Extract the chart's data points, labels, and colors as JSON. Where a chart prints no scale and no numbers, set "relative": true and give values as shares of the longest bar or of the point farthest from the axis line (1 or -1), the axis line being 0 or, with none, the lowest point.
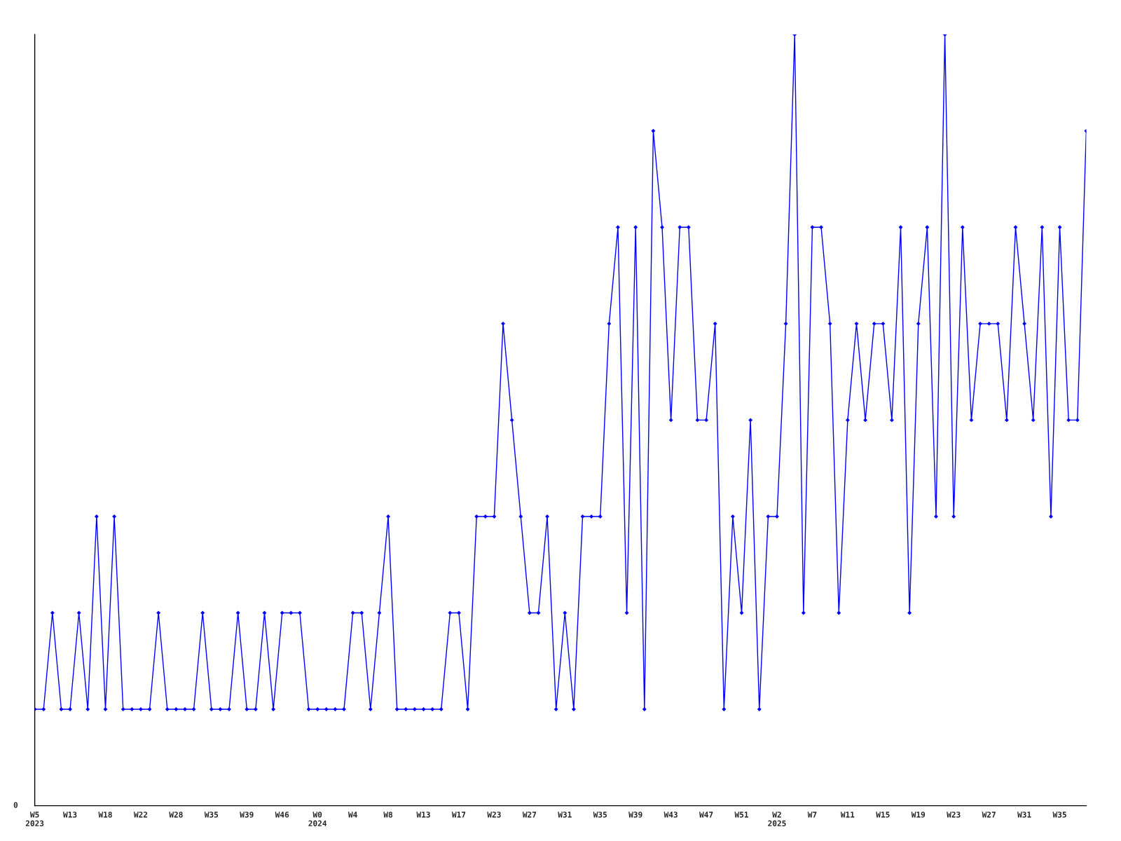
{
  "chart_data": {
    "type": "line",
    "relative": true,
    "marker": "diamond",
    "line_style": "solid",
    "grid": false,
    "legend": false,
    "annotations": [
      "0"
    ],
    "categories": [
      "W5\n2023",
      null,
      null,
      null,
      "W13",
      null,
      null,
      null,
      "W18",
      null,
      null,
      null,
      "W22",
      null,
      null,
      null,
      "W28",
      null,
      null,
      null,
      "W35",
      null,
      null,
      null,
      "W39",
      null,
      null,
      null,
      "W46",
      null,
      null,
      null,
      "W0\n2024",
      null,
      null,
      null,
      "W4",
      null,
      null,
      null,
      "W8",
      null,
      null,
      null,
      "W13",
      null,
      null,
      null,
      "W17",
      null,
      null,
      null,
      "W23",
      null,
      null,
      null,
      "W27",
      null,
      null,
      null,
      "W31",
      null,
      null,
      null,
      "W35",
      null,
      null,
      null,
      "W39",
      null,
      null,
      null,
      "W43",
      null,
      null,
      null,
      "W47",
      null,
      null,
      null,
      "W51",
      null,
      null,
      null,
      "W2\n2025",
      null,
      null,
      null,
      "W7",
      null,
      null,
      null,
      "W11",
      null,
      null,
      null,
      "W15",
      null,
      null,
      null,
      "W19",
      null,
      null,
      null,
      "W23",
      null,
      null,
      null,
      "W27",
      null,
      null,
      null,
      "W31",
      null,
      null,
      null,
      "W35",
      null,
      null,
      null
    ],
    "series": [
      {
        "color": "#0000ff",
        "values": [
          0.125,
          0.125,
          0.25,
          0.125,
          0.125,
          0.25,
          0.125,
          0.375,
          0.125,
          0.375,
          0.125,
          0.125,
          0.125,
          0.125,
          0.25,
          0.125,
          0.125,
          0.125,
          0.125,
          0.25,
          0.125,
          0.125,
          0.125,
          0.25,
          0.125,
          0.125,
          0.25,
          0.125,
          0.25,
          0.25,
          0.25,
          0.125,
          0.125,
          0.125,
          0.125,
          0.125,
          0.25,
          0.25,
          0.125,
          0.25,
          0.375,
          0.125,
          0.125,
          0.125,
          0.125,
          0.125,
          0.125,
          0.25,
          0.25,
          0.125,
          0.375,
          0.375,
          0.375,
          0.625,
          0.5,
          0.375,
          0.25,
          0.25,
          0.375,
          0.125,
          0.25,
          0.125,
          0.375,
          0.375,
          0.375,
          0.625,
          0.75,
          0.25,
          0.75,
          0.125,
          0.875,
          0.75,
          0.5,
          0.75,
          0.75,
          0.5,
          0.5,
          0.625,
          0.125,
          0.375,
          0.25,
          0.5,
          0.125,
          0.375,
          0.375,
          0.625,
          1,
          0.25,
          0.75,
          0.75,
          0.625,
          0.25,
          0.5,
          0.625,
          0.5,
          0.625,
          0.625,
          0.5,
          0.75,
          0.25,
          0.625,
          0.75,
          0.375,
          1,
          0.375,
          0.75,
          0.5,
          0.625,
          0.625,
          0.625,
          0.5,
          0.75,
          0.625,
          0.5,
          0.75,
          0.375,
          0.75,
          0.5,
          0.5,
          0.875
        ]
      }
    ]
  }
}
